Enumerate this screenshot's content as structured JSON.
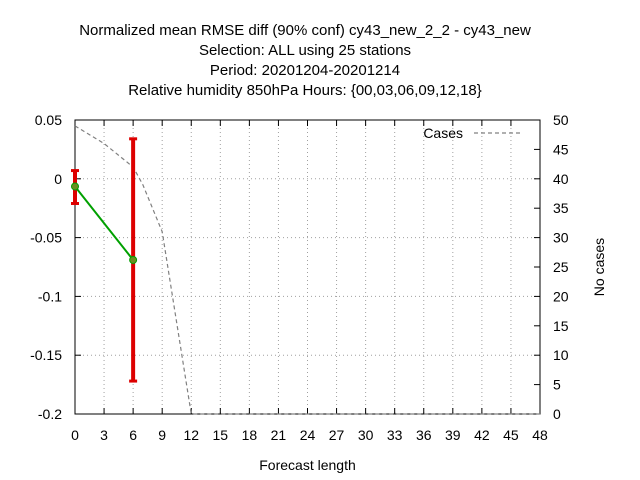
{
  "chart_data": {
    "type": "line",
    "title_lines": [
      "Normalized mean RMSE diff (90% conf) cy43_new_2_2 - cy43_new",
      "Selection: ALL using    25 stations",
      "Period: 20201204-20201214",
      "Relative humidity 850hPa   Hours: {00,03,06,09,12,18}"
    ],
    "xlabel": "Forecast length",
    "ylabel": "",
    "y2label": "No cases",
    "xlim": [
      0,
      48
    ],
    "ylim": [
      -0.2,
      0.05
    ],
    "y2lim": [
      0,
      50
    ],
    "xticks": [
      0,
      3,
      6,
      9,
      12,
      15,
      18,
      21,
      24,
      27,
      30,
      33,
      36,
      39,
      42,
      45,
      48
    ],
    "yticks": [
      0.05,
      0,
      -0.05,
      -0.1,
      -0.15,
      -0.2
    ],
    "ytick_labels": [
      "0.05",
      "0",
      "-0.05",
      "-0.1",
      "-0.15",
      "-0.2"
    ],
    "y2ticks": [
      50,
      45,
      40,
      35,
      30,
      25,
      20,
      15,
      10,
      5,
      0
    ],
    "grid": true,
    "legend": "top-right",
    "series": [
      {
        "name": "",
        "color": "#00a000",
        "x": [
          0,
          6
        ],
        "y": [
          -0.0065,
          -0.069
        ],
        "error_low": [
          -0.021,
          -0.172
        ],
        "error_high": [
          0.007,
          0.034
        ],
        "error_color": "#dd0000",
        "marker_color": "#6b8e23"
      },
      {
        "name": "Cases",
        "color": "#808080",
        "dash": true,
        "axis": "y2",
        "x": [
          0,
          3,
          6,
          7,
          9,
          12,
          15,
          18,
          21,
          24,
          27,
          30,
          33,
          36,
          39,
          42,
          45,
          48
        ],
        "y": [
          49,
          46,
          42,
          39,
          31,
          0,
          0,
          0,
          0,
          0,
          0,
          0,
          0,
          0,
          0,
          0,
          0,
          0
        ]
      }
    ]
  }
}
